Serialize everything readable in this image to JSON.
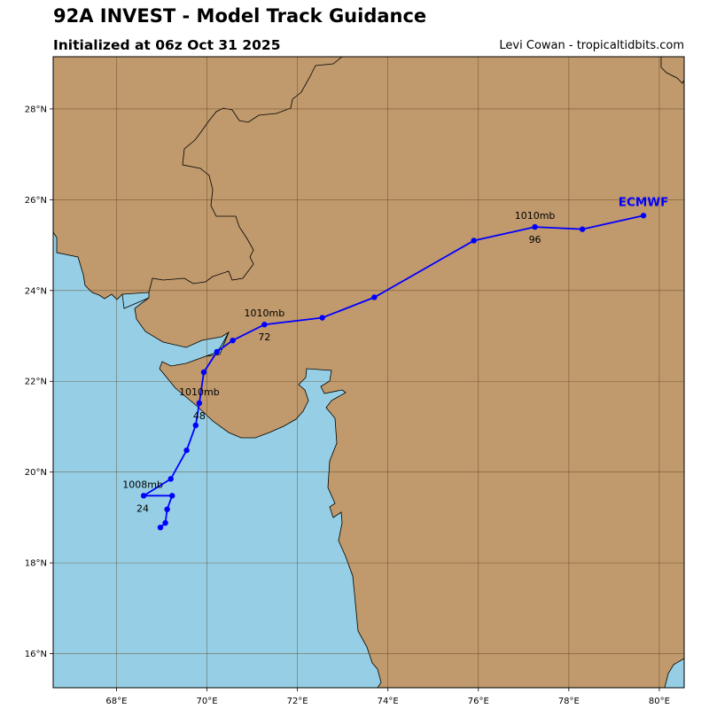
{
  "header": {
    "title": "92A INVEST - Model Track Guidance",
    "subtitle": "Initialized at 06z Oct 31 2025",
    "credit": "Levi Cowan - tropicaltidbits.com"
  },
  "map": {
    "lon_range": [
      66.6,
      80.55
    ],
    "lat_range": [
      15.25,
      29.15
    ],
    "land_color": "#c0996c",
    "water_color": "#96cfe5",
    "grid_color": "#5a4020",
    "track_color": "#0000ff",
    "lon_ticks": [
      {
        "value": 68,
        "label": "68°E"
      },
      {
        "value": 70,
        "label": "70°E"
      },
      {
        "value": 72,
        "label": "72°E"
      },
      {
        "value": 74,
        "label": "74°E"
      },
      {
        "value": 76,
        "label": "76°E"
      },
      {
        "value": 78,
        "label": "78°E"
      },
      {
        "value": 80,
        "label": "80°E"
      }
    ],
    "lat_ticks": [
      {
        "value": 16,
        "label": "16°N"
      },
      {
        "value": 18,
        "label": "18°N"
      },
      {
        "value": 20,
        "label": "20°N"
      },
      {
        "value": 22,
        "label": "22°N"
      },
      {
        "value": 24,
        "label": "24°N"
      },
      {
        "value": 26,
        "label": "26°N"
      },
      {
        "value": 28,
        "label": "28°N"
      }
    ]
  },
  "track": {
    "model": "ECMWF",
    "points": [
      {
        "lon": 68.97,
        "lat": 18.78
      },
      {
        "lon": 69.08,
        "lat": 18.88
      },
      {
        "lon": 69.12,
        "lat": 19.18
      },
      {
        "lon": 69.23,
        "lat": 19.48
      },
      {
        "lon": 68.6,
        "lat": 19.48
      },
      {
        "lon": 69.2,
        "lat": 19.85
      },
      {
        "lon": 69.55,
        "lat": 20.48
      },
      {
        "lon": 69.75,
        "lat": 21.03
      },
      {
        "lon": 69.83,
        "lat": 21.52
      },
      {
        "lon": 69.93,
        "lat": 22.2
      },
      {
        "lon": 70.22,
        "lat": 22.65
      },
      {
        "lon": 70.57,
        "lat": 22.9
      },
      {
        "lon": 71.27,
        "lat": 23.25
      },
      {
        "lon": 72.55,
        "lat": 23.4
      },
      {
        "lon": 73.7,
        "lat": 23.85
      },
      {
        "lon": 75.9,
        "lat": 25.1
      },
      {
        "lon": 77.25,
        "lat": 25.4
      },
      {
        "lon": 78.3,
        "lat": 25.35
      },
      {
        "lon": 79.65,
        "lat": 25.65
      }
    ],
    "labels": [
      {
        "lon": 68.58,
        "lat": 19.48,
        "pressure": "1008mb",
        "hour": "24"
      },
      {
        "lon": 69.83,
        "lat": 21.52,
        "pressure": "1010mb",
        "hour": "48"
      },
      {
        "lon": 71.27,
        "lat": 23.25,
        "pressure": "1010mb",
        "hour": "72"
      },
      {
        "lon": 77.25,
        "lat": 25.4,
        "pressure": "1010mb",
        "hour": "96"
      }
    ]
  }
}
